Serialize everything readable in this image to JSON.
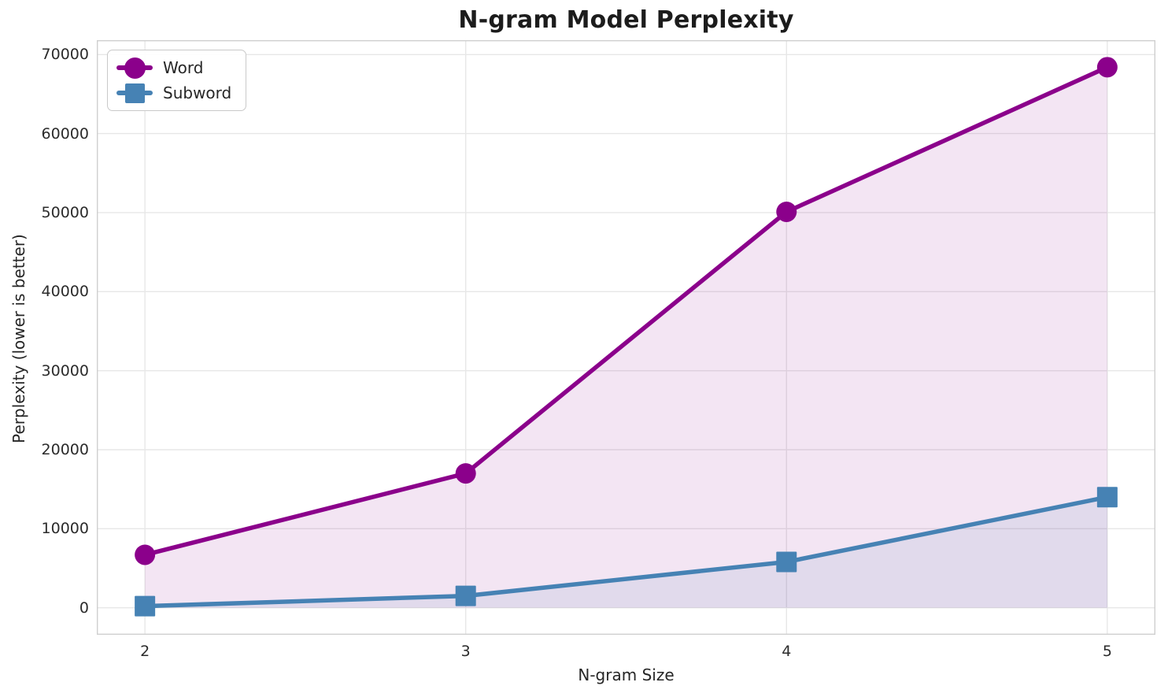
{
  "chart_data": {
    "type": "line",
    "title": "N-gram Model Perplexity",
    "xlabel": "N-gram Size",
    "ylabel": "Perplexity (lower is better)",
    "x": [
      2,
      3,
      4,
      5
    ],
    "series": [
      {
        "name": "Word",
        "marker": "circle",
        "color": "#8B008B",
        "values": [
          6700,
          17000,
          50100,
          68400
        ]
      },
      {
        "name": "Subword",
        "marker": "square",
        "color": "#4682B4",
        "values": [
          200,
          1500,
          5800,
          14000
        ]
      }
    ],
    "xticks": [
      2,
      3,
      4,
      5
    ],
    "yticks": [
      0,
      10000,
      20000,
      30000,
      40000,
      50000,
      60000,
      70000
    ],
    "xlim": [
      1.85,
      5.15
    ],
    "ylim": [
      -3420,
      71820
    ],
    "grid": true,
    "legend_position": "upper-left",
    "fill_to_zero": true,
    "fill_opacity": 0.1,
    "line_width": 5.5
  }
}
